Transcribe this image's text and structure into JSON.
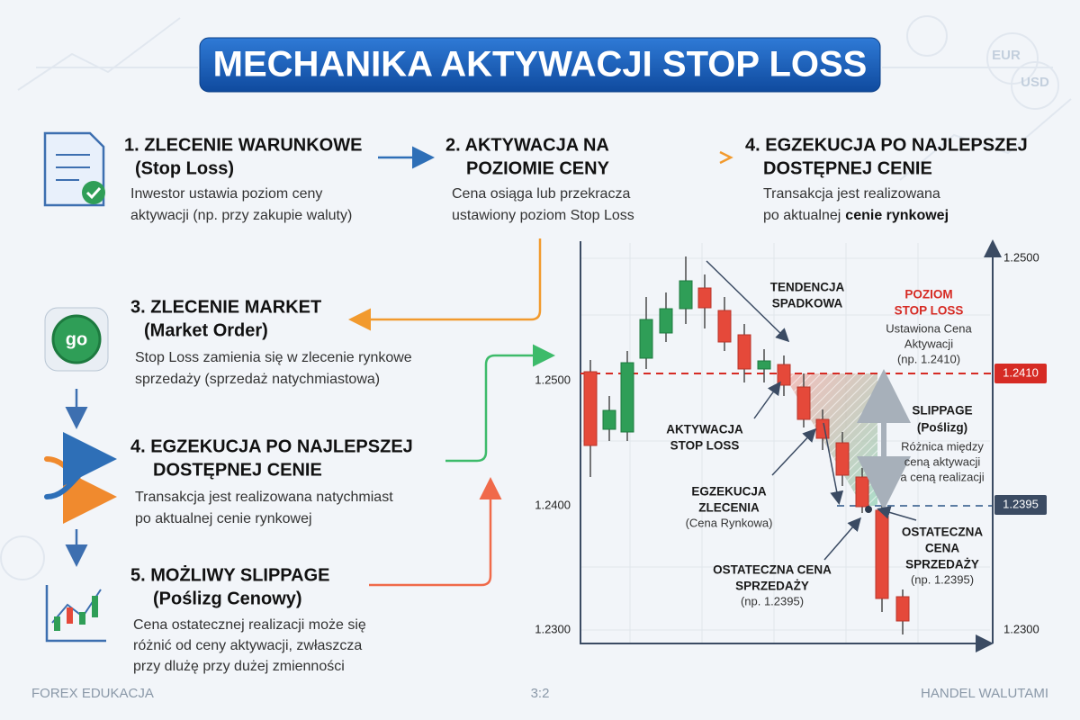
{
  "header": {
    "title": "MECHANIKA AKTYWACJI STOP LOSS"
  },
  "badges": [
    "EUR",
    "USD"
  ],
  "steps": [
    {
      "title": "1. ZLECENIE WARUNKOWE",
      "subtitle": "(Stop Loss)",
      "lines": [
        "Inwestor ustawia poziom ceny",
        "aktywacji (np. przy zakupie waluty)"
      ]
    },
    {
      "title": "2. AKTYWACJA NA",
      "subtitle": "POZIOMIE CENY",
      "lines": [
        "Cena osiąga lub przekracza",
        "ustawiony poziom Stop Loss"
      ]
    },
    {
      "title": "4. EGZEKUCJA PO NAJLEPSZEJ",
      "subtitle": "DOSTĘPNEJ CENIE",
      "lines": [
        "Transakcja jest realizowana",
        "po aktualnej"
      ],
      "emphasis": "cenie rynkowej"
    },
    {
      "title": "3. ZLECENIE MARKET",
      "subtitle": "(Market Order)",
      "lines": [
        "Stop Loss zamienia się w zlecenie rynkowe",
        "sprzedaży (sprzedaż natychmiastowa)"
      ]
    },
    {
      "title": "4. EGZEKUCJA PO NAJLEPSZEJ",
      "subtitle": "DOSTĘPNEJ CENIE",
      "lines": [
        "Transakcja jest realizowana natychmiast",
        "po aktualnej cenie rynkowej"
      ]
    },
    {
      "title": "5. MOŻLIWY SLIPPAGE",
      "subtitle": "(Poślizg Cenowy)",
      "lines": [
        "Cena ostatecznej realizacji może się",
        "różnić od ceny aktywacji, zwłaszcza",
        "przy dlużę przy dużej zmienności"
      ]
    }
  ],
  "icon_go": "go",
  "chart": {
    "left_ticks": [
      "1.2500",
      "1.2400",
      "1.2300"
    ],
    "right_ticks": [
      "1.2500",
      "1.2300"
    ],
    "levels": [
      "1.2410",
      "1.2395"
    ],
    "notes": [
      {
        "lines": [
          "TENDENCJA",
          "SPADKOWA"
        ]
      },
      {
        "lines": [
          "POZIOM",
          "STOP LOSS"
        ]
      },
      {
        "lines": [
          "Ustawiona Cena",
          "Aktywacji",
          "(np. 1.2410)"
        ]
      },
      {
        "lines": [
          "AKTYWACJA",
          "STOP LOSS"
        ]
      },
      {
        "lines": [
          "EGZEKUCJA",
          "ZLECENIA"
        ]
      },
      {
        "lines": [
          "(Cena Rynkowa)"
        ]
      },
      {
        "lines": [
          "SLIPPAGE",
          "(Poślizg)"
        ]
      },
      {
        "lines": [
          "Różnica między",
          "ceną aktywacji",
          "a ceną realizacji"
        ]
      },
      {
        "lines": [
          "OSTATECZNA",
          "CENA",
          "SPRZEDAŻY"
        ]
      },
      {
        "lines": [
          "(np. 1.2395)"
        ]
      },
      {
        "lines": [
          "OSTATECZNA CENA",
          "SPRZEDAŻY"
        ]
      },
      {
        "lines": [
          "(np. 1.2395)"
        ]
      }
    ]
  },
  "footer": {
    "left": "FOREX EDUKACJA",
    "center": "3:2",
    "right": "HANDEL WALUTAMI"
  }
}
